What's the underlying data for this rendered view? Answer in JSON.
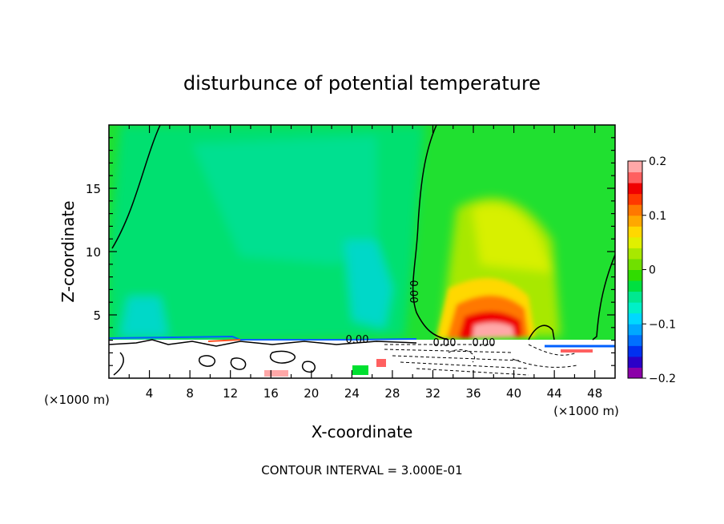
{
  "chart_data": {
    "type": "heatmap",
    "title": "disturbunce of potential temperature",
    "xlabel": "X-coordinate",
    "ylabel": "Z-coordinate",
    "x_unit": "(×1000 m)",
    "x_unit_right": "(×1000 m)",
    "xlim": [
      0,
      50
    ],
    "ylim": [
      0,
      20
    ],
    "x_ticks": [
      "4",
      "8",
      "12",
      "16",
      "20",
      "24",
      "28",
      "32",
      "36",
      "40",
      "44",
      "48"
    ],
    "y_ticks": [
      "5",
      "10",
      "15"
    ],
    "colorbar": {
      "range": [
        -0.2,
        0.2
      ],
      "tick_labels": [
        "0.2",
        "0.1",
        "0",
        "−0.1",
        "−0.2"
      ],
      "colors": [
        "#8b00a8",
        "#2a00c8",
        "#0030f0",
        "#0070ff",
        "#00a8ff",
        "#00d8ff",
        "#00f0c8",
        "#00e890",
        "#00e040",
        "#30dc00",
        "#70e000",
        "#a8e800",
        "#e0f000",
        "#ffd800",
        "#ffa800",
        "#ff7800",
        "#ff3800",
        "#f00000",
        "#ff6060",
        "#ffa8a8"
      ]
    },
    "contour_labels": [
      "0.00",
      "0.00",
      "0.00",
      "0.00"
    ],
    "footer": "CONTOUR INTERVAL = 3.000E-01"
  }
}
